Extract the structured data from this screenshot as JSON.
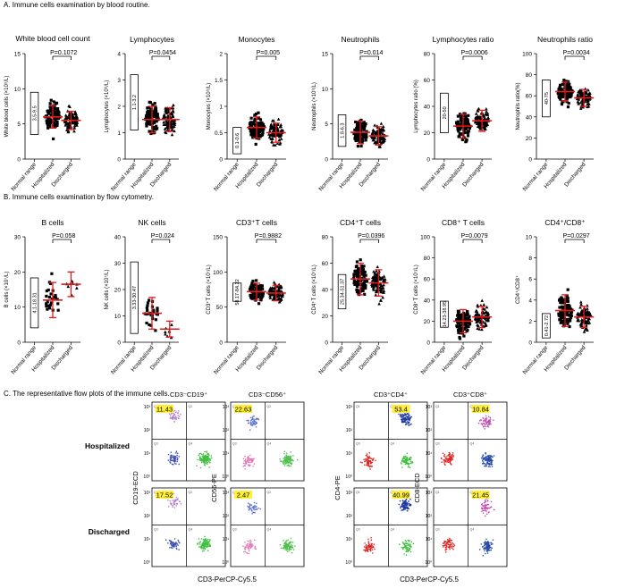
{
  "sections": {
    "a": "A. Immune cells examination by blood routine.",
    "b": "B. Immune cells  examination by flow cytometry.",
    "c": "C. The representative flow plots of the immune cells."
  },
  "chart_data": [
    {
      "type": "scatter",
      "id": "wbc",
      "title": "White blood cell count",
      "ylabel": "White blood cells (×10⁹/L)",
      "categories": [
        "Normal range",
        "Hospitalized",
        "Discharged"
      ],
      "normal_range": [
        3.5,
        9.5
      ],
      "normal_range_label": "3.5-9.5",
      "ylim": [
        0,
        15
      ],
      "yticks": [
        0,
        5,
        10,
        15
      ],
      "series": [
        {
          "name": "Hospitalized",
          "mean": 6.0,
          "sd": 1.6
        },
        {
          "name": "Discharged",
          "mean": 5.5,
          "sd": 1.3
        }
      ],
      "p_value": "P=0.1072"
    },
    {
      "type": "scatter",
      "id": "lym",
      "title": "Lymphocytes",
      "ylabel": "Lymphocytes (×10⁹/L)",
      "categories": [
        "Normal range",
        "Hospitalized",
        "Discharged"
      ],
      "normal_range": [
        1.1,
        3.2
      ],
      "normal_range_label": "1.1-3.2",
      "ylim": [
        0,
        4
      ],
      "yticks": [
        0,
        1,
        2,
        3,
        4
      ],
      "series": [
        {
          "name": "Hospitalized",
          "mean": 1.5,
          "sd": 0.5
        },
        {
          "name": "Discharged",
          "mean": 1.5,
          "sd": 0.45
        }
      ],
      "p_value": "P=0.0454"
    },
    {
      "type": "scatter",
      "id": "mono",
      "title": "Monocytes",
      "ylabel": "Monocytes (×10⁹/L)",
      "categories": [
        "Normal range",
        "Hospitalized",
        "Discharged"
      ],
      "normal_range": [
        0.1,
        0.6
      ],
      "normal_range_label": "0.1-0.6",
      "ylim": [
        0,
        2.0
      ],
      "yticks": [
        0.0,
        0.5,
        1.0,
        1.5,
        2.0
      ],
      "series": [
        {
          "name": "Hospitalized",
          "mean": 0.6,
          "sd": 0.2
        },
        {
          "name": "Discharged",
          "mean": 0.5,
          "sd": 0.18
        }
      ],
      "p_value": "P=0.005"
    },
    {
      "type": "scatter",
      "id": "neut",
      "title": "Neutrophils",
      "ylabel": "Neutrophils (×10⁹/L)",
      "categories": [
        "Normal range",
        "Hospitalized",
        "Discharged"
      ],
      "normal_range": [
        1.8,
        6.3
      ],
      "normal_range_label": "1.8-6.3",
      "ylim": [
        0,
        15
      ],
      "yticks": [
        0,
        5,
        10,
        15
      ],
      "series": [
        {
          "name": "Hospitalized",
          "mean": 3.8,
          "sd": 1.6
        },
        {
          "name": "Discharged",
          "mean": 3.3,
          "sd": 1.3
        }
      ],
      "p_value": "P=0.014"
    },
    {
      "type": "scatter",
      "id": "lymr",
      "title": "Lymphocytes ratio",
      "ylabel": "Lymphocytes ratio (%)",
      "categories": [
        "Normal range",
        "Hospitalized",
        "Discharged"
      ],
      "normal_range": [
        20,
        50
      ],
      "normal_range_label": "20-50",
      "ylim": [
        0,
        80
      ],
      "yticks": [
        0,
        20,
        40,
        60,
        80
      ],
      "series": [
        {
          "name": "Hospitalized",
          "mean": 25,
          "sd": 9
        },
        {
          "name": "Discharged",
          "mean": 29,
          "sd": 8
        }
      ],
      "p_value": "P=0.0006"
    },
    {
      "type": "scatter",
      "id": "neur",
      "title": "Neutrophils ratio",
      "ylabel": "Neutrophils ratio(%)",
      "categories": [
        "Normal range",
        "Hospitalized",
        "Discharged"
      ],
      "normal_range": [
        40,
        75
      ],
      "normal_range_label": "40-75",
      "ylim": [
        0,
        100
      ],
      "yticks": [
        0,
        20,
        40,
        60,
        80,
        100
      ],
      "series": [
        {
          "name": "Hospitalized",
          "mean": 64,
          "sd": 9
        },
        {
          "name": "Discharged",
          "mean": 58,
          "sd": 8
        }
      ],
      "p_value": "P=0.0034"
    },
    {
      "type": "scatter",
      "id": "bc",
      "title": "B cells",
      "ylabel": "B cells (×10⁷/L)",
      "categories": [
        "Normal range",
        "Hospitalized",
        "Discharged"
      ],
      "normal_range": [
        4.1,
        18.31
      ],
      "normal_range_label": "4.1-18.31",
      "ylim": [
        0,
        30
      ],
      "yticks": [
        0,
        10,
        20,
        30
      ],
      "series": [
        {
          "name": "Hospitalized",
          "mean": 12,
          "sd": 5
        },
        {
          "name": "Discharged",
          "mean": 16.5,
          "sd": 3.5
        }
      ],
      "p_value": "P=0.058"
    },
    {
      "type": "scatter",
      "id": "nk",
      "title": "NK cells",
      "ylabel": "NK cells (×10⁷/L)",
      "categories": [
        "Normal range",
        "Hospitalized",
        "Discharged"
      ],
      "normal_range": [
        3.33,
        30.47
      ],
      "normal_range_label": "3.33-30.47",
      "ylim": [
        0,
        40
      ],
      "yticks": [
        0,
        10,
        20,
        30,
        40
      ],
      "series": [
        {
          "name": "Hospitalized",
          "mean": 11,
          "sd": 6
        },
        {
          "name": "Discharged",
          "mean": 5,
          "sd": 3
        }
      ],
      "p_value": "P=0.024"
    },
    {
      "type": "scatter",
      "id": "cd3",
      "title": "CD3⁺T cells",
      "ylabel": "CD3⁺T cells (×10⁷/L)",
      "categories": [
        "Normal range",
        "Hospitalized",
        "Discharged"
      ],
      "normal_range": [
        58.17,
        84.22
      ],
      "normal_range_label": "58.17-84.22",
      "ylim": [
        0,
        150
      ],
      "yticks": [
        0,
        50,
        100,
        150
      ],
      "series": [
        {
          "name": "Hospitalized",
          "mean": 72,
          "sd": 12
        },
        {
          "name": "Discharged",
          "mean": 70,
          "sd": 11
        }
      ],
      "p_value": "P=0.9882"
    },
    {
      "type": "scatter",
      "id": "cd4",
      "title": "CD4⁺T cells",
      "ylabel": "CD4⁺T cells (×10⁷/L)",
      "categories": [
        "Normal range",
        "Hospitalized",
        "Discharged"
      ],
      "normal_range": [
        25.34,
        51.37
      ],
      "normal_range_label": "25.34-51.37",
      "ylim": [
        0,
        80
      ],
      "yticks": [
        0,
        20,
        40,
        60,
        80
      ],
      "series": [
        {
          "name": "Hospitalized",
          "mean": 48,
          "sd": 12
        },
        {
          "name": "Discharged",
          "mean": 45,
          "sd": 10
        }
      ],
      "p_value": "P=0.0396"
    },
    {
      "type": "scatter",
      "id": "cd8",
      "title": "CD8⁺ T cells",
      "ylabel": "CD8⁺T cells (×10⁷/L)",
      "categories": [
        "Normal range",
        "Hospitalized",
        "Discharged"
      ],
      "normal_range": [
        14.23,
        38.95
      ],
      "normal_range_label": "14.23-38.95",
      "ylim": [
        0,
        100
      ],
      "yticks": [
        0,
        20,
        40,
        60,
        80,
        100
      ],
      "series": [
        {
          "name": "Hospitalized",
          "mean": 20,
          "sd": 11
        },
        {
          "name": "Discharged",
          "mean": 24,
          "sd": 10
        }
      ],
      "p_value": "P=0.0079"
    },
    {
      "type": "scatter",
      "id": "ratio",
      "title": "CD4⁺/CD8⁺",
      "ylabel": "CD4⁺/CD8⁺",
      "categories": [
        "Normal range",
        "Hospitalized",
        "Discharged"
      ],
      "normal_range": [
        0.41,
        2.72
      ],
      "normal_range_label": "0.41-2.72",
      "ylim": [
        0,
        10
      ],
      "yticks": [
        0,
        2,
        4,
        6,
        8,
        10
      ],
      "series": [
        {
          "name": "Hospitalized",
          "mean": 3.0,
          "sd": 1.5
        },
        {
          "name": "Discharged",
          "mean": 2.4,
          "sd": 1.0
        }
      ],
      "p_value": "P=0.0297"
    }
  ],
  "flow": {
    "row_labels": [
      "Hospitalized",
      "Discharged"
    ],
    "xlabel": "CD3-PerCP-Cy5.5",
    "panels": [
      {
        "title": "CD3⁻CD19⁺",
        "ylabel": "CD19-ECD",
        "values": [
          "11.43",
          "17.52"
        ],
        "corner": "top-left"
      },
      {
        "title": "CD3⁻CD56⁺",
        "ylabel": "CD56-PE",
        "values": [
          "22.63",
          "2.47"
        ],
        "corner": "top-left"
      },
      {
        "title": "CD3⁺CD4⁺",
        "ylabel": "CD4-PE",
        "values": [
          "53.4",
          "40.99"
        ],
        "corner": "top-right"
      },
      {
        "title": "CD3⁺CD8⁺",
        "ylabel": "CD8-ECD",
        "values": [
          "10.84",
          "21.45"
        ],
        "corner": "top-right"
      }
    ],
    "quadrant_codes": [
      "Q1",
      "Q2",
      "Q3",
      "Q4"
    ],
    "tick_labels": [
      "10³",
      "10²",
      "10¹",
      "10⁰"
    ]
  }
}
